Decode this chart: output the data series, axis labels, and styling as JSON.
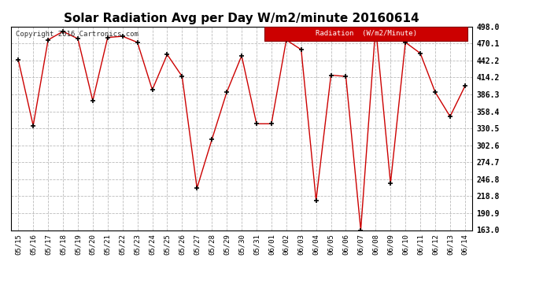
{
  "title": "Solar Radiation Avg per Day W/m2/minute 20160614",
  "copyright": "Copyright 2016 Cartronics.com",
  "legend_label": "Radiation  (W/m2/Minute)",
  "dates": [
    "05/15",
    "05/16",
    "05/17",
    "05/18",
    "05/19",
    "05/20",
    "05/21",
    "05/22",
    "05/23",
    "05/24",
    "05/25",
    "05/26",
    "05/27",
    "05/28",
    "05/29",
    "05/30",
    "05/31",
    "06/01",
    "06/02",
    "06/03",
    "06/04",
    "06/05",
    "06/06",
    "06/07",
    "06/08",
    "06/09",
    "06/10",
    "06/11",
    "06/12",
    "06/13",
    "06/14"
  ],
  "values": [
    443,
    335,
    476,
    490,
    478,
    376,
    480,
    482,
    472,
    394,
    452,
    416,
    232,
    312,
    390,
    450,
    338,
    338,
    476,
    460,
    212,
    418,
    416,
    163,
    498,
    240,
    472,
    454,
    390,
    350,
    400
  ],
  "y_ticks": [
    163.0,
    190.9,
    218.8,
    246.8,
    274.7,
    302.6,
    330.5,
    358.4,
    386.3,
    414.2,
    442.2,
    470.1,
    498.0
  ],
  "ylim": [
    163.0,
    498.0
  ],
  "line_color": "#cc0000",
  "marker_color": "#000000",
  "background_color": "#ffffff",
  "grid_color": "#bbbbbb",
  "title_fontsize": 11,
  "legend_bg": "#cc0000",
  "legend_text_color": "#ffffff"
}
